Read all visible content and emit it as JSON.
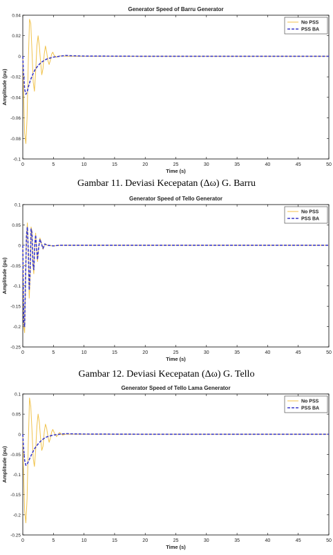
{
  "colors": {
    "no_pss": "#f0c24a",
    "pss_ba": "#3a3ac8",
    "axis": "#000000",
    "legend_border": "#333333"
  },
  "chart_data": [
    {
      "type": "line",
      "title": "Generator Speed of Barru Generator",
      "xlabel": "Time (s)",
      "ylabel": "Amplitude (pu)",
      "xlim": [
        0,
        50
      ],
      "ylim": [
        -0.1,
        0.04
      ],
      "xticks": [
        0,
        5,
        10,
        15,
        20,
        25,
        30,
        35,
        40,
        45,
        50
      ],
      "yticks": [
        0.04,
        0.02,
        0,
        -0.02,
        -0.04,
        -0.06,
        -0.08,
        -0.1
      ],
      "ytick_labels": [
        "0.04",
        "0.02",
        "0",
        "-0.02",
        "-0.04",
        "-0.06",
        "-0.08",
        "-0.1"
      ],
      "grid": false,
      "legend": "top-right",
      "series": [
        {
          "name": "No PSS",
          "style": "solid",
          "x": [
            0,
            0.1,
            0.3,
            0.5,
            0.7,
            0.9,
            1.1,
            1.3,
            1.5,
            1.7,
            1.9,
            2.1,
            2.3,
            2.5,
            2.7,
            2.9,
            3.1,
            3.3,
            3.5,
            3.7,
            3.9,
            4.1,
            4.3,
            4.5,
            4.7,
            4.9,
            5.1,
            5.5,
            6,
            7,
            10,
            20,
            30,
            40,
            50
          ],
          "y": [
            0,
            -0.03,
            -0.075,
            -0.085,
            -0.06,
            -0.005,
            0.036,
            0.032,
            0.005,
            -0.025,
            -0.034,
            -0.015,
            0.01,
            0.02,
            0.01,
            -0.005,
            -0.018,
            -0.012,
            0.002,
            0.01,
            0.004,
            -0.004,
            -0.008,
            -0.004,
            0.002,
            0.004,
            0.001,
            -0.001,
            0.0005,
            0,
            0,
            0,
            0,
            0,
            0
          ]
        },
        {
          "name": "PSS BA",
          "style": "dashed",
          "x": [
            0,
            0.1,
            0.3,
            0.5,
            0.7,
            0.9,
            1.2,
            1.6,
            2,
            2.5,
            3,
            3.5,
            4,
            5,
            6,
            7,
            8,
            10,
            20,
            30,
            40,
            50
          ],
          "y": [
            0,
            -0.015,
            -0.032,
            -0.037,
            -0.035,
            -0.03,
            -0.024,
            -0.018,
            -0.013,
            -0.009,
            -0.006,
            -0.004,
            -0.0025,
            -0.0008,
            0,
            0.0008,
            0.0005,
            0.0002,
            0,
            0,
            0,
            0
          ]
        }
      ]
    },
    {
      "type": "line",
      "title": "Generator Speed of Tello Generator",
      "xlabel": "Time (s)",
      "ylabel": "Amplitude (pu)",
      "xlim": [
        0,
        50
      ],
      "ylim": [
        -0.25,
        0.1
      ],
      "xticks": [
        0,
        5,
        10,
        15,
        20,
        25,
        30,
        35,
        40,
        45,
        50
      ],
      "yticks": [
        0.1,
        0.05,
        0,
        -0.05,
        -0.1,
        -0.15,
        -0.2,
        -0.25
      ],
      "ytick_labels": [
        "0.1",
        "0.05",
        "0",
        "-0.05",
        "-0.1",
        "-0.15",
        "-0.2",
        "-0.25"
      ],
      "grid": false,
      "legend": "top-right",
      "series": [
        {
          "name": "No PSS",
          "style": "solid",
          "x": [
            0,
            0.15,
            0.3,
            0.45,
            0.6,
            0.75,
            0.9,
            1.05,
            1.2,
            1.35,
            1.5,
            1.65,
            1.8,
            1.95,
            2.1,
            2.25,
            2.4,
            2.6,
            2.8,
            3,
            3.3,
            3.6,
            4,
            5,
            6,
            10,
            20,
            30,
            40,
            50
          ],
          "y": [
            0,
            -0.2,
            -0.215,
            -0.09,
            0.02,
            0.055,
            -0.02,
            -0.13,
            -0.08,
            0.045,
            0.035,
            -0.05,
            -0.07,
            0,
            0.03,
            -0.01,
            -0.04,
            -0.005,
            0.018,
            0.008,
            -0.01,
            0.004,
            0,
            -0.002,
            0,
            0,
            0,
            0,
            0,
            0
          ]
        },
        {
          "name": "PSS BA",
          "style": "dashed",
          "x": [
            0,
            0.15,
            0.3,
            0.45,
            0.6,
            0.75,
            0.9,
            1.05,
            1.2,
            1.35,
            1.5,
            1.65,
            1.8,
            1.95,
            2.1,
            2.25,
            2.4,
            2.6,
            2.8,
            3,
            3.3,
            3.6,
            4,
            5,
            6,
            10,
            20,
            30,
            40,
            50
          ],
          "y": [
            0,
            -0.19,
            -0.2,
            -0.08,
            0.025,
            0.045,
            -0.015,
            -0.11,
            -0.065,
            0.04,
            0.03,
            -0.045,
            -0.06,
            0,
            0.025,
            -0.008,
            -0.035,
            -0.004,
            0.015,
            0.006,
            -0.008,
            0.003,
            0,
            -0.0015,
            0,
            0,
            0,
            0,
            0,
            0
          ]
        }
      ]
    },
    {
      "type": "line",
      "title": "Generator Speed of Tello Lama Generator",
      "xlabel": "Time (s)",
      "ylabel": "Amplitude (pu)",
      "xlim": [
        0,
        50
      ],
      "ylim": [
        -0.25,
        0.1
      ],
      "xticks": [
        0,
        5,
        10,
        15,
        20,
        25,
        30,
        35,
        40,
        45,
        50
      ],
      "yticks": [
        0.1,
        0.05,
        0,
        -0.05,
        -0.1,
        -0.15,
        -0.2,
        -0.25
      ],
      "ytick_labels": [
        "0.1",
        "0.05",
        "0",
        "-0.05",
        "-0.1",
        "-0.15",
        "-0.2",
        "-0.25"
      ],
      "grid": false,
      "legend": "top-right",
      "series": [
        {
          "name": "No PSS",
          "style": "solid",
          "x": [
            0,
            0.1,
            0.3,
            0.5,
            0.7,
            0.9,
            1.1,
            1.3,
            1.5,
            1.7,
            1.9,
            2.1,
            2.3,
            2.5,
            2.7,
            2.9,
            3.1,
            3.3,
            3.5,
            3.7,
            3.9,
            4.1,
            4.3,
            4.5,
            4.7,
            4.9,
            5.1,
            5.5,
            6,
            6.5,
            7,
            10,
            20,
            30,
            40,
            50
          ],
          "y": [
            0,
            -0.08,
            -0.19,
            -0.22,
            -0.16,
            -0.02,
            0.09,
            0.07,
            0.01,
            -0.06,
            -0.08,
            -0.04,
            0.02,
            0.05,
            0.03,
            -0.01,
            -0.04,
            -0.03,
            0.005,
            0.025,
            0.015,
            -0.005,
            -0.02,
            -0.01,
            0.005,
            0.012,
            0.005,
            -0.006,
            0.004,
            -0.002,
            0,
            0,
            0,
            0,
            0,
            0
          ]
        },
        {
          "name": "PSS BA",
          "style": "dashed",
          "x": [
            0,
            0.1,
            0.3,
            0.5,
            0.7,
            0.9,
            1.2,
            1.6,
            2,
            2.5,
            3,
            3.5,
            4,
            5,
            6,
            7,
            8,
            10,
            20,
            30,
            40,
            50
          ],
          "y": [
            0,
            -0.03,
            -0.065,
            -0.077,
            -0.075,
            -0.068,
            -0.058,
            -0.045,
            -0.034,
            -0.024,
            -0.016,
            -0.01,
            -0.006,
            -0.002,
            0,
            0.0015,
            0.001,
            0.0005,
            0,
            0,
            0,
            0
          ]
        }
      ]
    }
  ],
  "captions": [
    "Gambar 11. Deviasi Kecepatan (Δω) G. Barru",
    "Gambar 12. Deviasi Kecepatan (Δω) G. Tello"
  ]
}
